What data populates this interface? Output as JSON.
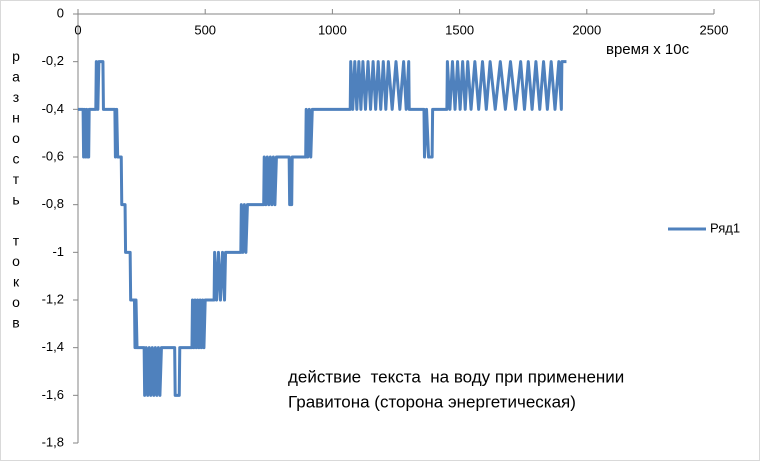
{
  "chart_data": {
    "type": "line",
    "y_label": "разность токов",
    "x_label": "время x 10с",
    "annotations": [
      "действие  текста  на воду при применении",
      "Гравитона (сторона энергетическая)"
    ],
    "xlim": [
      0,
      2500
    ],
    "xticks": [
      0,
      500,
      1000,
      1500,
      2000,
      2500
    ],
    "ylim": [
      -1.8,
      0
    ],
    "yticks": [
      0,
      {
        "value": -0.2,
        "label": "-0,2"
      },
      {
        "value": -0.4,
        "label": "-0,4"
      },
      {
        "value": -0.6,
        "label": "-0,6"
      },
      {
        "value": -0.8,
        "label": "-0,8"
      },
      -1,
      {
        "value": -1.2,
        "label": "-1,2"
      },
      {
        "value": -1.4,
        "label": "-1,4"
      },
      {
        "value": -1.6,
        "label": "-1,6"
      },
      {
        "value": -1.8,
        "label": "-1,8"
      }
    ],
    "grid": false,
    "legend": "right",
    "x": [
      0,
      20,
      22,
      26,
      30,
      34,
      38,
      42,
      44,
      70,
      72,
      78,
      82,
      98,
      100,
      145,
      147,
      152,
      156,
      170,
      172,
      185,
      187,
      205,
      207,
      222,
      224,
      228,
      232,
      260,
      262,
      268,
      274,
      280,
      286,
      292,
      298,
      304,
      310,
      316,
      322,
      328,
      380,
      382,
      398,
      400,
      448,
      450,
      455,
      460,
      465,
      470,
      475,
      480,
      485,
      490,
      495,
      500,
      535,
      537,
      545,
      552,
      560,
      568,
      576,
      580,
      640,
      642,
      648,
      654,
      660,
      666,
      730,
      732,
      738,
      744,
      750,
      756,
      762,
      768,
      774,
      780,
      830,
      832,
      840,
      842,
      895,
      897,
      903,
      909,
      915,
      921,
      1070,
      1072,
      1080,
      1088,
      1096,
      1104,
      1112,
      1120,
      1130,
      1140,
      1150,
      1160,
      1170,
      1180,
      1190,
      1200,
      1210,
      1220,
      1235,
      1250,
      1265,
      1280,
      1290,
      1300,
      1302,
      1360,
      1362,
      1370,
      1378,
      1392,
      1394,
      1450,
      1452,
      1462,
      1472,
      1482,
      1492,
      1502,
      1512,
      1522,
      1532,
      1545,
      1560,
      1575,
      1590,
      1605,
      1620,
      1640,
      1660,
      1680,
      1700,
      1720,
      1740,
      1755,
      1770,
      1785,
      1800,
      1815,
      1830,
      1845,
      1860,
      1875,
      1890,
      1900,
      1902,
      1920
    ],
    "series": [
      {
        "name": "Ряд1",
        "color": "#4f81bd",
        "values": [
          -0.4,
          -0.4,
          -0.6,
          -0.4,
          -0.6,
          -0.4,
          -0.6,
          -0.6,
          -0.4,
          -0.4,
          -0.2,
          -0.4,
          -0.2,
          -0.2,
          -0.4,
          -0.4,
          -0.6,
          -0.4,
          -0.6,
          -0.6,
          -0.8,
          -0.8,
          -1.0,
          -1.0,
          -1.2,
          -1.2,
          -1.4,
          -1.2,
          -1.4,
          -1.4,
          -1.6,
          -1.4,
          -1.6,
          -1.4,
          -1.6,
          -1.4,
          -1.6,
          -1.4,
          -1.6,
          -1.4,
          -1.6,
          -1.4,
          -1.4,
          -1.6,
          -1.6,
          -1.4,
          -1.4,
          -1.2,
          -1.4,
          -1.2,
          -1.4,
          -1.2,
          -1.4,
          -1.2,
          -1.4,
          -1.2,
          -1.4,
          -1.2,
          -1.2,
          -1.0,
          -1.2,
          -1.0,
          -1.2,
          -1.0,
          -1.2,
          -1.0,
          -1.0,
          -0.8,
          -1.0,
          -0.8,
          -1.0,
          -0.8,
          -0.8,
          -0.6,
          -0.8,
          -0.6,
          -0.8,
          -0.6,
          -0.8,
          -0.6,
          -0.8,
          -0.6,
          -0.6,
          -0.8,
          -0.8,
          -0.6,
          -0.6,
          -0.4,
          -0.6,
          -0.4,
          -0.6,
          -0.4,
          -0.4,
          -0.2,
          -0.4,
          -0.2,
          -0.4,
          -0.2,
          -0.4,
          -0.2,
          -0.4,
          -0.2,
          -0.4,
          -0.2,
          -0.4,
          -0.2,
          -0.4,
          -0.2,
          -0.4,
          -0.2,
          -0.4,
          -0.2,
          -0.4,
          -0.2,
          -0.4,
          -0.2,
          -0.4,
          -0.4,
          -0.6,
          -0.4,
          -0.6,
          -0.6,
          -0.4,
          -0.4,
          -0.2,
          -0.4,
          -0.2,
          -0.4,
          -0.2,
          -0.4,
          -0.2,
          -0.4,
          -0.2,
          -0.4,
          -0.2,
          -0.4,
          -0.2,
          -0.4,
          -0.2,
          -0.4,
          -0.2,
          -0.4,
          -0.2,
          -0.4,
          -0.2,
          -0.4,
          -0.2,
          -0.4,
          -0.2,
          -0.4,
          -0.2,
          -0.4,
          -0.2,
          -0.4,
          -0.2,
          -0.4,
          -0.2,
          -0.2
        ]
      }
    ]
  }
}
